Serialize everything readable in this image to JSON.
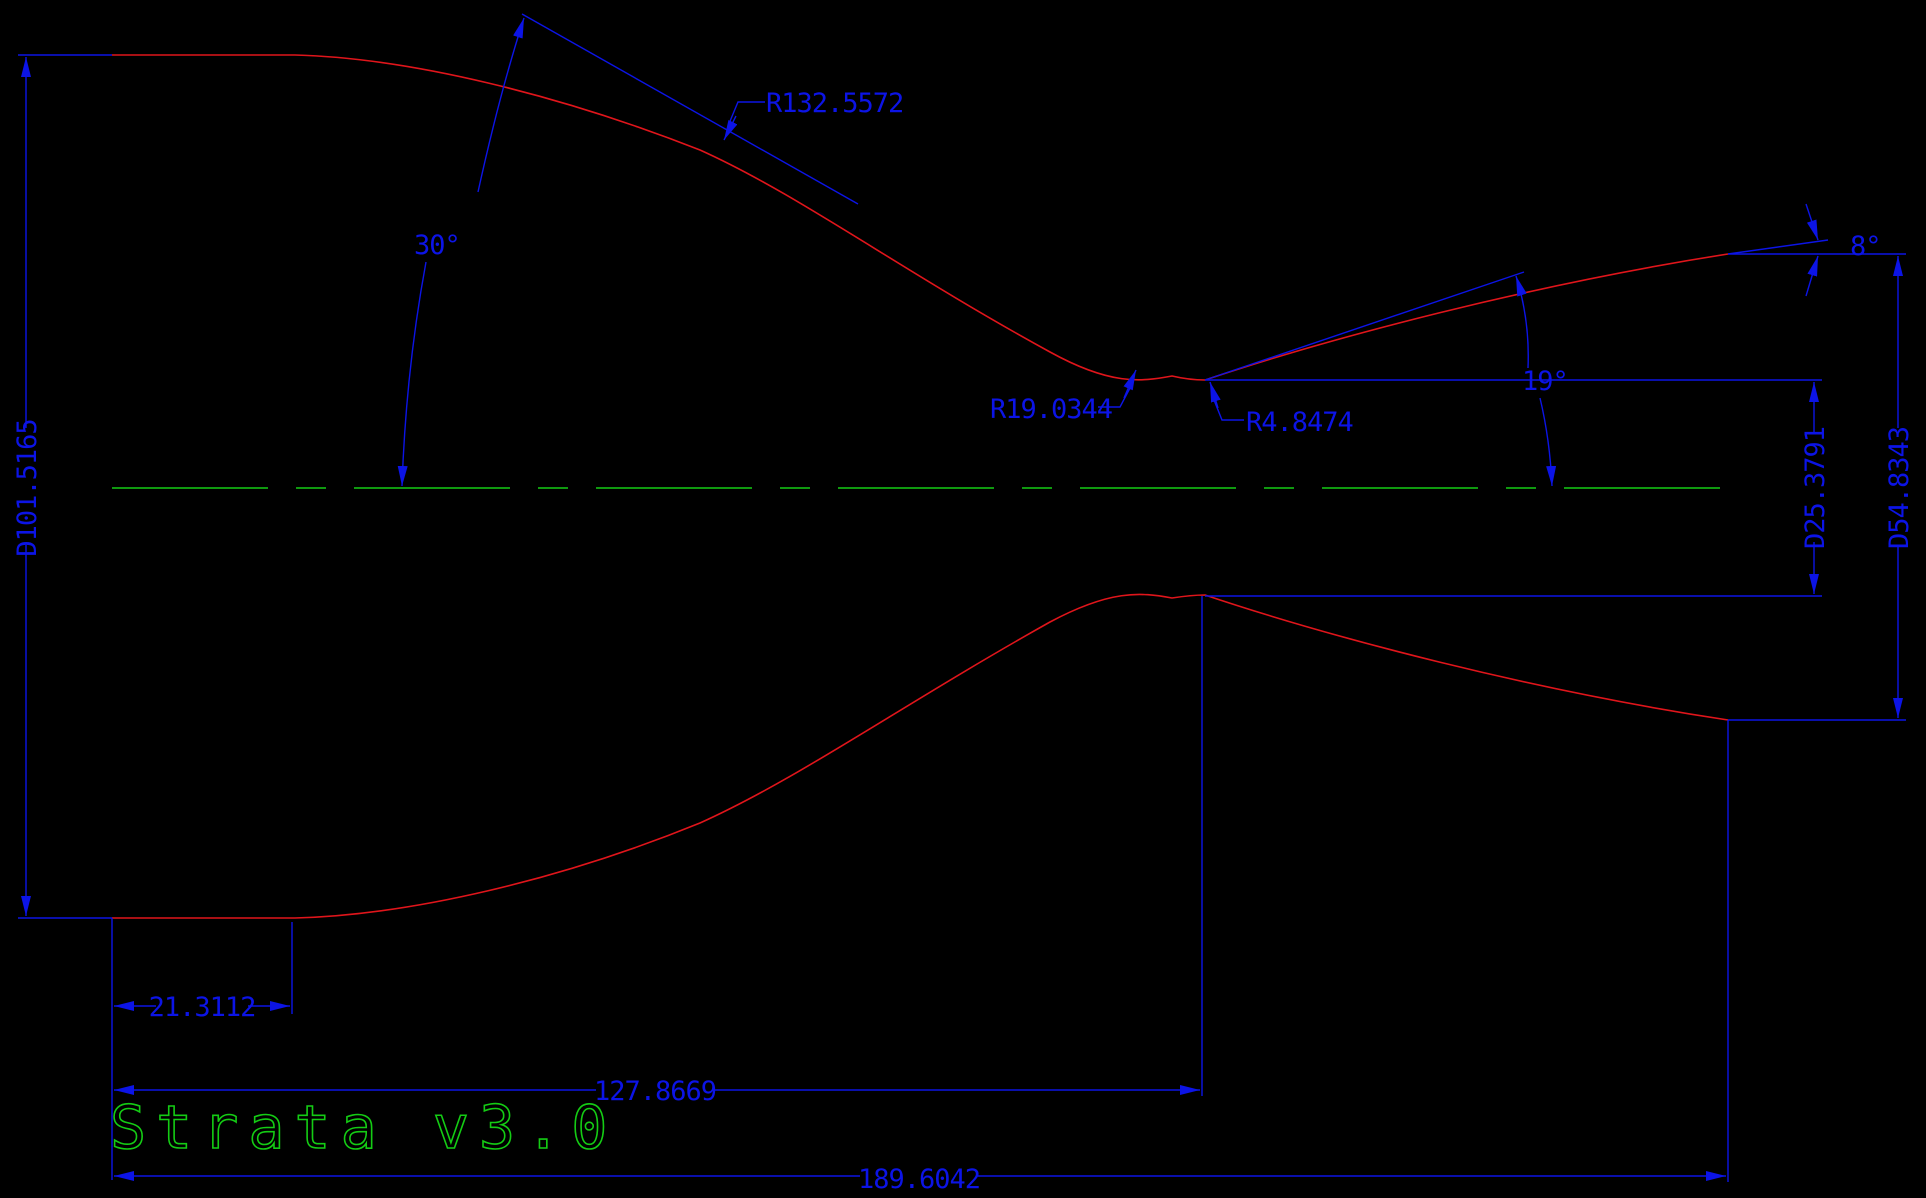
{
  "colors": {
    "background": "#000000",
    "profile": "#e0151b",
    "dimension": "#0c14e6",
    "centerline": "#14cc14",
    "brand": "#14cc14"
  },
  "labels": {
    "exit_half_angle": "8°",
    "inlet_converging_angle": "30°",
    "divergence_angle": "19°",
    "upstream_radius": "R132.5572",
    "throat_upstream_radius": "R19.0344",
    "throat_downstream_radius": "R4.8474",
    "inlet_diameter": "D101.5165",
    "throat_diameter": "D25.3791",
    "exit_diameter": "D54.8343",
    "inlet_straight_length": "21.3112",
    "throat_position": "127.8669",
    "overall_length": "189.6042"
  },
  "brand": {
    "name": "Strata v3.0"
  },
  "drawing": {
    "axis_line_style": "center",
    "profile_icon": "nozzle-contour-icon"
  }
}
